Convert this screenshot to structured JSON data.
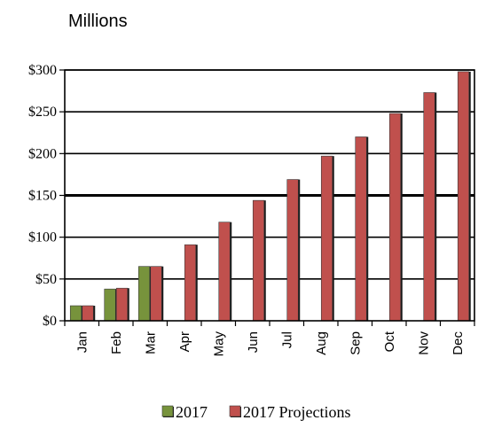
{
  "chart_data": {
    "type": "bar",
    "unit_label": "Millions",
    "categories": [
      "Jan",
      "Feb",
      "Mar",
      "Apr",
      "May",
      "Jun",
      "Jul",
      "Aug",
      "Sep",
      "Oct",
      "Nov",
      "Dec"
    ],
    "series": [
      {
        "name": "2017",
        "color": "#77933c",
        "values": [
          18,
          38,
          65,
          null,
          null,
          null,
          null,
          null,
          null,
          null,
          null,
          null
        ]
      },
      {
        "name": "2017 Projections",
        "color": "#c0504d",
        "values": [
          18,
          39,
          65,
          91,
          118,
          144,
          169,
          197,
          220,
          248,
          273,
          298
        ]
      }
    ],
    "ylim": [
      0,
      300
    ],
    "yticks": [
      0,
      50,
      100,
      150,
      200,
      250,
      300
    ],
    "ytick_labels": [
      "$0",
      "$50",
      "$100",
      "$150",
      "$200",
      "$250",
      "$300"
    ],
    "grid": true,
    "legend": "bottom"
  }
}
